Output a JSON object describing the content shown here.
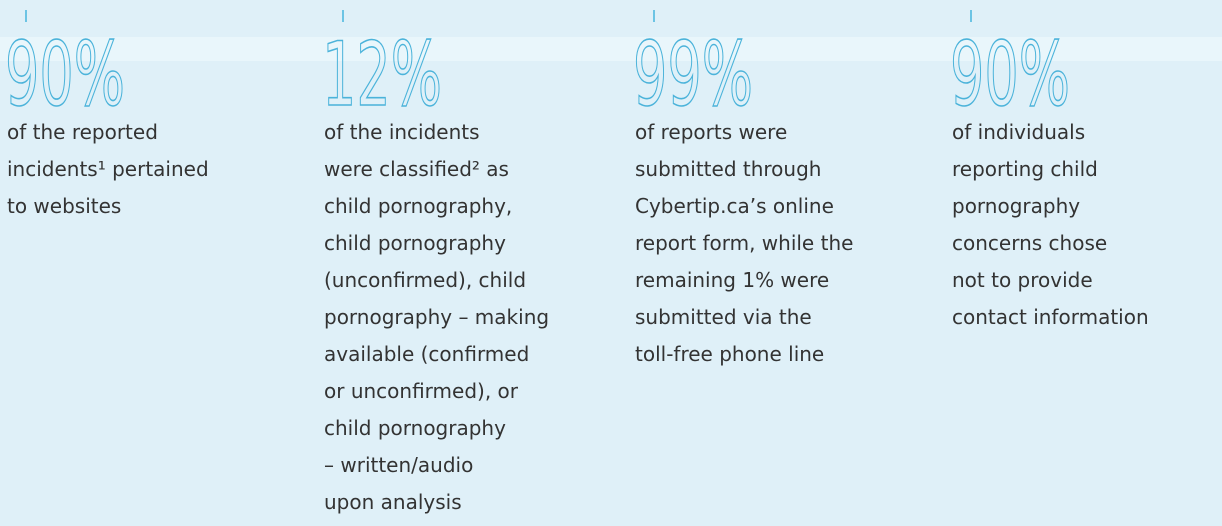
{
  "stats": [
    {
      "value": "90%",
      "lines": [
        "of the reported",
        "incidents¹ pertained",
        "to websites"
      ]
    },
    {
      "value": "12%",
      "lines": [
        "of the incidents",
        "were classified² as",
        "child pornography,",
        "child pornography",
        "(unconfirmed), child",
        "pornography – making",
        "available (confirmed",
        "or unconfirmed), or",
        "child pornography",
        "– written/audio",
        "upon analysis"
      ]
    },
    {
      "value": "99%",
      "lines": [
        "of reports were",
        "submitted through",
        "Cybertip.ca’s online",
        "report form, while the",
        "remaining 1% were",
        "submitted via the",
        "toll-free phone line"
      ]
    },
    {
      "value": "90%",
      "lines": [
        "of individuals",
        "reporting child",
        "pornography",
        "concerns chose",
        "not to provide",
        "contact information"
      ]
    }
  ]
}
